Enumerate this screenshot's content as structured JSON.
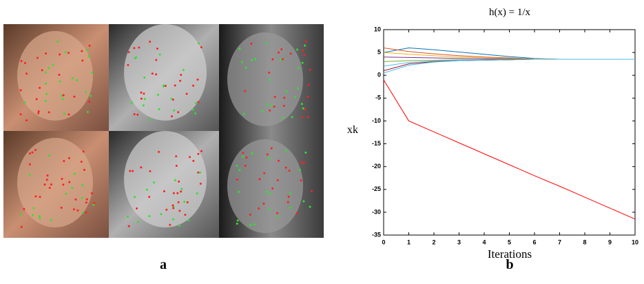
{
  "figure": {
    "panel_a": {
      "label": "a"
    },
    "panel_b": {
      "label": "b"
    }
  },
  "chart_data": {
    "type": "line",
    "title": "h(x) = 1/x",
    "x_label": "Iterations",
    "y_label": "xk",
    "x": [
      0,
      1,
      2,
      3,
      4,
      5,
      6,
      7,
      8,
      9,
      10
    ],
    "xlim": [
      0,
      10
    ],
    "xticks": [
      0,
      1,
      2,
      3,
      4,
      5,
      6,
      7,
      8,
      9,
      10
    ],
    "ylim": [
      -35,
      10
    ],
    "yticks": [
      -35,
      -30,
      -25,
      -20,
      -15,
      -10,
      -5,
      0,
      5,
      10
    ],
    "series": [
      {
        "color": "#0072bd",
        "values": [
          5,
          6,
          5.6,
          5.1,
          4.6,
          4.1,
          3.7,
          3.5,
          3.5,
          3.5,
          3.5
        ]
      },
      {
        "color": "#d95319",
        "values": [
          6,
          5.2,
          4.7,
          4.3,
          4.0,
          3.8,
          3.6,
          3.5,
          3.5,
          3.5,
          3.5
        ]
      },
      {
        "color": "#edb120",
        "values": [
          5,
          4.6,
          4.3,
          4.0,
          3.8,
          3.7,
          3.6,
          3.5,
          3.5,
          3.5,
          3.5
        ]
      },
      {
        "color": "#7e2f8e",
        "values": [
          4,
          3.9,
          3.8,
          3.7,
          3.6,
          3.6,
          3.5,
          3.5,
          3.5,
          3.5,
          3.5
        ]
      },
      {
        "color": "#77ac30",
        "values": [
          3,
          3.2,
          3.3,
          3.4,
          3.4,
          3.5,
          3.5,
          3.5,
          3.5,
          3.5,
          3.5
        ]
      },
      {
        "color": "#4dbeee",
        "values": [
          2,
          2.8,
          3.1,
          3.3,
          3.4,
          3.4,
          3.5,
          3.5,
          3.5,
          3.5,
          3.5
        ]
      },
      {
        "color": "#a2142f",
        "values": [
          1,
          2.5,
          3.0,
          3.2,
          3.3,
          3.4,
          3.5,
          3.5,
          3.5,
          3.5,
          3.5
        ]
      },
      {
        "color": "#4dbeee",
        "values": [
          0.5,
          2.2,
          2.9,
          3.2,
          3.3,
          3.4,
          3.5,
          3.5,
          3.5,
          3.5,
          3.5
        ]
      },
      {
        "color": "#ff0000",
        "values": [
          -1,
          -10,
          -12.4,
          -14.8,
          -17.2,
          -19.6,
          -22,
          -24.3,
          -26.7,
          -29.1,
          -31.5
        ]
      }
    ]
  }
}
